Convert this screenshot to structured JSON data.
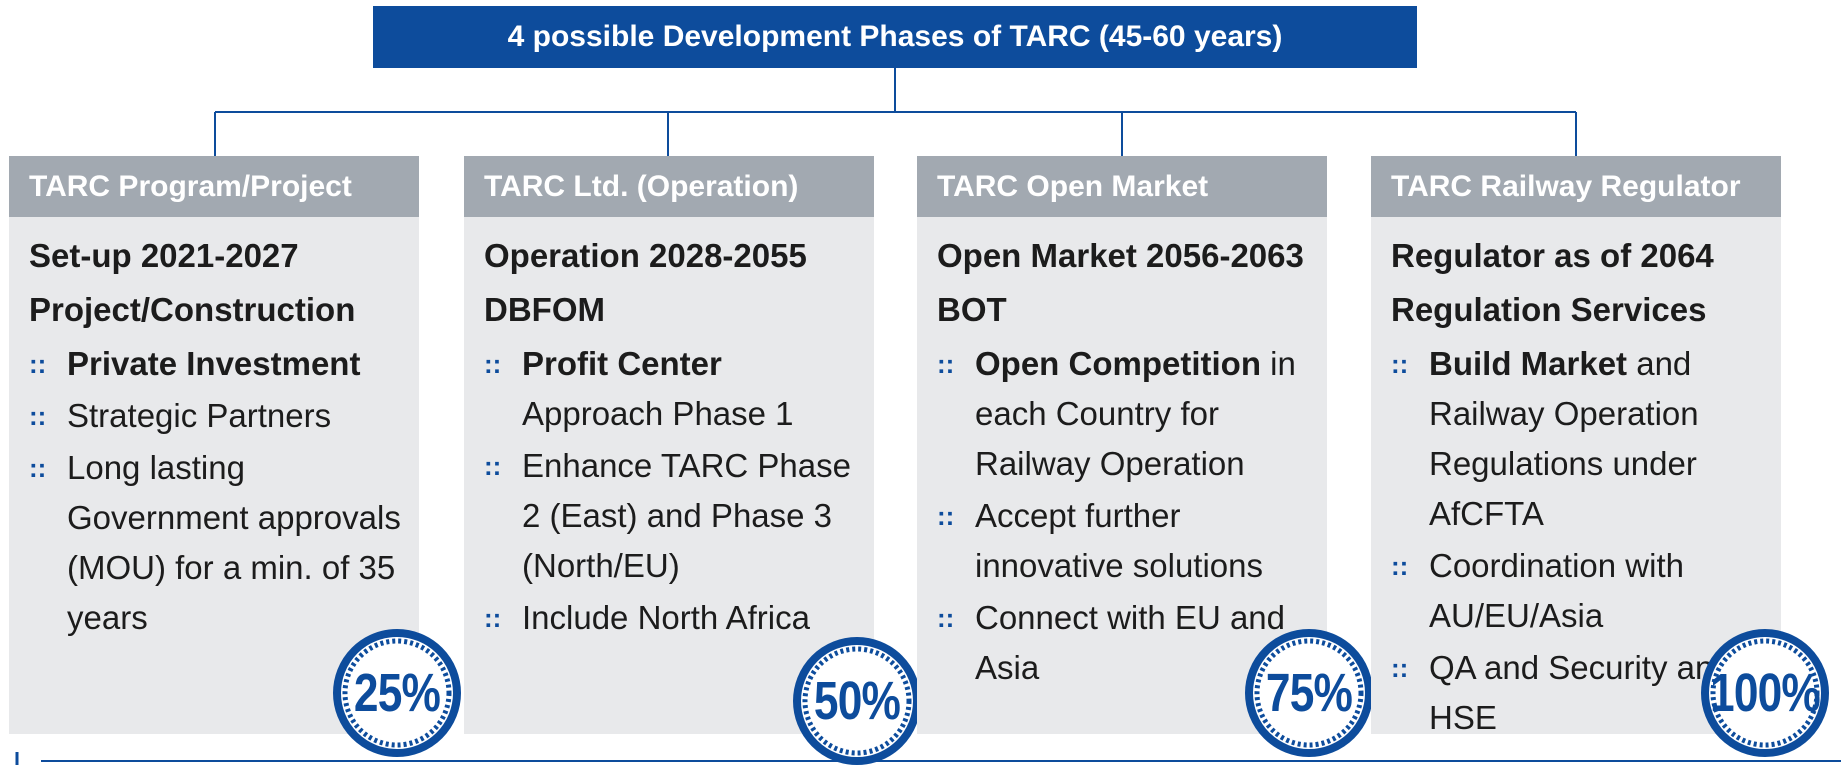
{
  "title": "4 possible Development Phases of TARC (45-60 years)",
  "phases": [
    {
      "header": "TARC Program/Project",
      "heading": [
        "Set-up 2021-2027",
        "Project/Construction"
      ],
      "bullets": [
        {
          "bold": "Private Investment"
        },
        {
          "text": "Strategic Partners"
        },
        {
          "text": "Long lasting Government approvals (MOU) for a min. of 35 years"
        }
      ],
      "percent": "25%"
    },
    {
      "header": "TARC Ltd. (Operation)",
      "heading": [
        "Operation 2028-2055",
        "DBFOM"
      ],
      "bullets": [
        {
          "bold": "Profit Center",
          "text": "Approach Phase 1"
        },
        {
          "text": "Enhance TARC Phase 2 (East) and Phase 3 (North/EU)"
        },
        {
          "text": "Include North Africa"
        }
      ],
      "percent": "50%"
    },
    {
      "header": "TARC Open Market",
      "heading": [
        "Open Market 2056-2063 BOT"
      ],
      "bullets": [
        {
          "bold": "Open Competition",
          "text": "in each Country for Railway Operation"
        },
        {
          "text": "Accept further innovative solutions"
        },
        {
          "text": "Connect with EU and Asia"
        }
      ],
      "percent": "75%"
    },
    {
      "header": "TARC Railway Regulator",
      "heading": [
        "Regulator as of 2064",
        "Regulation Services"
      ],
      "bullets": [
        {
          "bold": "Build Market",
          "text": "and Railway Operation Regulations under AfCFTA"
        },
        {
          "text": "Coordination with AU/EU/Asia"
        },
        {
          "text": "QA and Security and HSE"
        }
      ],
      "percent": "100%"
    }
  ]
}
